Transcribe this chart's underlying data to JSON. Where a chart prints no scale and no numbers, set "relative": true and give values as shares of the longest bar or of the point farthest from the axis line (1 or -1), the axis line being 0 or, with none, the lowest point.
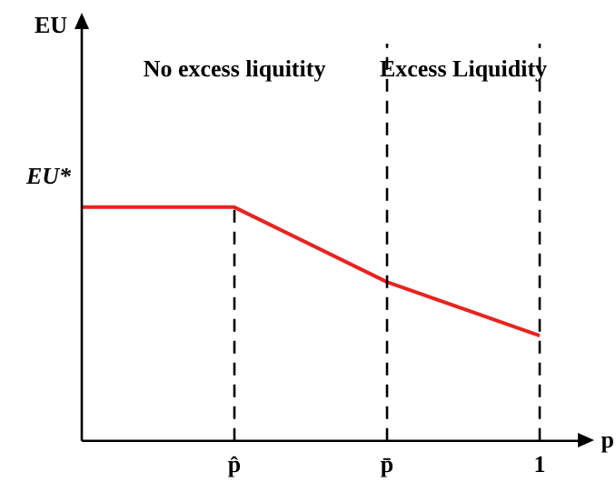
{
  "chart_data": {
    "type": "line",
    "relative": true,
    "xlabel": "p",
    "categories": [
      null,
      "p̂",
      "p̄",
      "1"
    ],
    "series": [
      {
        "color": "#e8231f",
        "values": [
          1,
          1,
          0.68,
          0.45
        ]
      }
    ],
    "annotations": [
      "EU",
      "EU*",
      "No excess liquitity",
      "Excess Liquidity"
    ],
    "ref_lines": [
      {
        "axis": "x",
        "value": "p̂",
        "line_style": "dashed"
      },
      {
        "axis": "x",
        "value": "p̄",
        "line_style": "dashed"
      },
      {
        "axis": "x",
        "value": "1",
        "line_style": "dashed"
      }
    ],
    "marker": "none",
    "line_style": "solid",
    "grid": false,
    "legend": false
  }
}
